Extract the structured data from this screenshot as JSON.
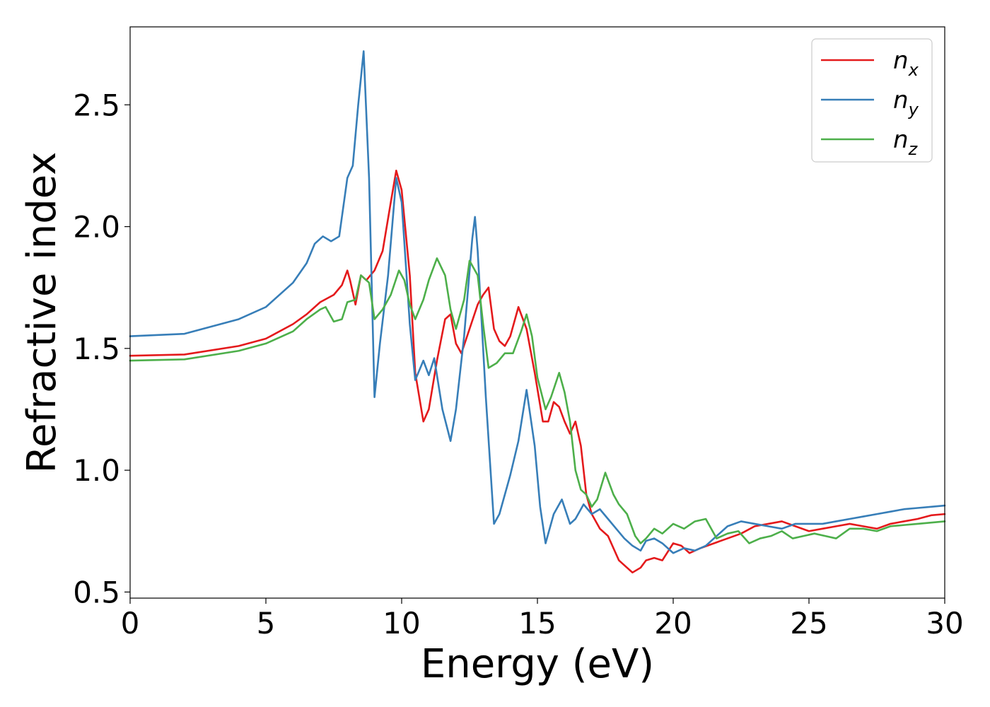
{
  "chart_data": {
    "type": "line",
    "title": "",
    "xlabel": "Energy (eV)",
    "ylabel": "Refractive index",
    "xlim": [
      0,
      30
    ],
    "ylim": [
      0.475,
      2.82
    ],
    "xticks": [
      0,
      5,
      10,
      15,
      20,
      25,
      30
    ],
    "xtick_labels": [
      "0",
      "5",
      "10",
      "15",
      "20",
      "25",
      "30"
    ],
    "yticks": [
      0.5,
      1.0,
      1.5,
      2.0,
      2.5
    ],
    "ytick_labels": [
      "0.5",
      "1.0",
      "1.5",
      "2.0",
      "2.5"
    ],
    "grid": false,
    "legend_position": "top-right",
    "series": [
      {
        "name": "n_x",
        "label_main": "n",
        "label_sub": "x",
        "color": "#e41a1c",
        "points": [
          [
            0,
            1.47
          ],
          [
            2,
            1.475
          ],
          [
            4,
            1.51
          ],
          [
            5,
            1.54
          ],
          [
            6,
            1.6
          ],
          [
            6.5,
            1.64
          ],
          [
            7,
            1.69
          ],
          [
            7.5,
            1.72
          ],
          [
            7.8,
            1.76
          ],
          [
            8.0,
            1.82
          ],
          [
            8.1,
            1.78
          ],
          [
            8.3,
            1.68
          ],
          [
            8.5,
            1.8
          ],
          [
            8.7,
            1.78
          ],
          [
            9.0,
            1.82
          ],
          [
            9.3,
            1.9
          ],
          [
            9.6,
            2.1
          ],
          [
            9.8,
            2.23
          ],
          [
            10.0,
            2.15
          ],
          [
            10.3,
            1.8
          ],
          [
            10.5,
            1.4
          ],
          [
            10.8,
            1.2
          ],
          [
            11.0,
            1.25
          ],
          [
            11.3,
            1.45
          ],
          [
            11.6,
            1.62
          ],
          [
            11.8,
            1.64
          ],
          [
            12.0,
            1.52
          ],
          [
            12.2,
            1.48
          ],
          [
            12.5,
            1.58
          ],
          [
            12.8,
            1.68
          ],
          [
            13.0,
            1.72
          ],
          [
            13.2,
            1.75
          ],
          [
            13.4,
            1.58
          ],
          [
            13.6,
            1.53
          ],
          [
            13.8,
            1.51
          ],
          [
            14.0,
            1.55
          ],
          [
            14.3,
            1.67
          ],
          [
            14.6,
            1.58
          ],
          [
            14.9,
            1.4
          ],
          [
            15.2,
            1.2
          ],
          [
            15.4,
            1.2
          ],
          [
            15.6,
            1.28
          ],
          [
            15.8,
            1.26
          ],
          [
            16.0,
            1.2
          ],
          [
            16.2,
            1.15
          ],
          [
            16.4,
            1.2
          ],
          [
            16.6,
            1.1
          ],
          [
            16.8,
            0.9
          ],
          [
            17.0,
            0.82
          ],
          [
            17.3,
            0.76
          ],
          [
            17.6,
            0.73
          ],
          [
            17.8,
            0.68
          ],
          [
            18.0,
            0.63
          ],
          [
            18.3,
            0.6
          ],
          [
            18.5,
            0.58
          ],
          [
            18.8,
            0.6
          ],
          [
            19.0,
            0.63
          ],
          [
            19.3,
            0.64
          ],
          [
            19.6,
            0.63
          ],
          [
            20.0,
            0.7
          ],
          [
            20.3,
            0.69
          ],
          [
            20.6,
            0.66
          ],
          [
            21.0,
            0.68
          ],
          [
            21.5,
            0.7
          ],
          [
            22,
            0.72
          ],
          [
            22.5,
            0.74
          ],
          [
            23,
            0.77
          ],
          [
            23.5,
            0.78
          ],
          [
            24,
            0.79
          ],
          [
            24.5,
            0.77
          ],
          [
            25,
            0.75
          ],
          [
            25.5,
            0.76
          ],
          [
            26,
            0.77
          ],
          [
            26.5,
            0.78
          ],
          [
            27,
            0.77
          ],
          [
            27.5,
            0.76
          ],
          [
            28,
            0.78
          ],
          [
            28.5,
            0.79
          ],
          [
            29,
            0.8
          ],
          [
            29.5,
            0.815
          ],
          [
            30,
            0.82
          ]
        ]
      },
      {
        "name": "n_y",
        "label_main": "n",
        "label_sub": "y",
        "color": "#377eb8",
        "points": [
          [
            0,
            1.55
          ],
          [
            2,
            1.56
          ],
          [
            4,
            1.62
          ],
          [
            5,
            1.67
          ],
          [
            6,
            1.77
          ],
          [
            6.5,
            1.85
          ],
          [
            6.8,
            1.93
          ],
          [
            7.1,
            1.96
          ],
          [
            7.4,
            1.94
          ],
          [
            7.7,
            1.96
          ],
          [
            8.0,
            2.2
          ],
          [
            8.2,
            2.25
          ],
          [
            8.4,
            2.5
          ],
          [
            8.6,
            2.72
          ],
          [
            8.8,
            2.2
          ],
          [
            9.0,
            1.3
          ],
          [
            9.2,
            1.52
          ],
          [
            9.5,
            1.8
          ],
          [
            9.8,
            2.2
          ],
          [
            10.0,
            2.1
          ],
          [
            10.3,
            1.6
          ],
          [
            10.5,
            1.37
          ],
          [
            10.8,
            1.45
          ],
          [
            11.0,
            1.39
          ],
          [
            11.2,
            1.46
          ],
          [
            11.5,
            1.25
          ],
          [
            11.8,
            1.12
          ],
          [
            12.0,
            1.25
          ],
          [
            12.3,
            1.55
          ],
          [
            12.6,
            1.95
          ],
          [
            12.7,
            2.04
          ],
          [
            12.8,
            1.9
          ],
          [
            13.1,
            1.3
          ],
          [
            13.4,
            0.78
          ],
          [
            13.6,
            0.82
          ],
          [
            14.0,
            0.98
          ],
          [
            14.3,
            1.12
          ],
          [
            14.6,
            1.33
          ],
          [
            14.9,
            1.1
          ],
          [
            15.1,
            0.85
          ],
          [
            15.3,
            0.7
          ],
          [
            15.6,
            0.82
          ],
          [
            15.9,
            0.88
          ],
          [
            16.2,
            0.78
          ],
          [
            16.4,
            0.8
          ],
          [
            16.7,
            0.86
          ],
          [
            17.0,
            0.82
          ],
          [
            17.3,
            0.84
          ],
          [
            17.6,
            0.8
          ],
          [
            17.9,
            0.76
          ],
          [
            18.2,
            0.72
          ],
          [
            18.5,
            0.69
          ],
          [
            18.8,
            0.67
          ],
          [
            19.0,
            0.71
          ],
          [
            19.3,
            0.72
          ],
          [
            19.6,
            0.7
          ],
          [
            20.0,
            0.66
          ],
          [
            20.4,
            0.68
          ],
          [
            20.8,
            0.67
          ],
          [
            21.2,
            0.69
          ],
          [
            21.6,
            0.73
          ],
          [
            22,
            0.77
          ],
          [
            22.5,
            0.79
          ],
          [
            23,
            0.78
          ],
          [
            23.5,
            0.77
          ],
          [
            24,
            0.76
          ],
          [
            24.5,
            0.78
          ],
          [
            25,
            0.78
          ],
          [
            25.5,
            0.78
          ],
          [
            26,
            0.79
          ],
          [
            26.5,
            0.8
          ],
          [
            27,
            0.81
          ],
          [
            27.5,
            0.82
          ],
          [
            28,
            0.83
          ],
          [
            28.5,
            0.84
          ],
          [
            29,
            0.845
          ],
          [
            29.5,
            0.85
          ],
          [
            30,
            0.855
          ]
        ]
      },
      {
        "name": "n_z",
        "label_main": "n",
        "label_sub": "z",
        "color": "#4daf4a",
        "points": [
          [
            0,
            1.45
          ],
          [
            2,
            1.455
          ],
          [
            4,
            1.49
          ],
          [
            5,
            1.52
          ],
          [
            6,
            1.57
          ],
          [
            6.5,
            1.62
          ],
          [
            7.0,
            1.66
          ],
          [
            7.2,
            1.67
          ],
          [
            7.5,
            1.61
          ],
          [
            7.8,
            1.62
          ],
          [
            8.0,
            1.69
          ],
          [
            8.3,
            1.7
          ],
          [
            8.5,
            1.8
          ],
          [
            8.8,
            1.77
          ],
          [
            9.0,
            1.62
          ],
          [
            9.3,
            1.66
          ],
          [
            9.6,
            1.72
          ],
          [
            9.9,
            1.82
          ],
          [
            10.1,
            1.78
          ],
          [
            10.3,
            1.68
          ],
          [
            10.5,
            1.62
          ],
          [
            10.8,
            1.7
          ],
          [
            11.0,
            1.78
          ],
          [
            11.3,
            1.87
          ],
          [
            11.6,
            1.8
          ],
          [
            11.8,
            1.66
          ],
          [
            12.0,
            1.58
          ],
          [
            12.3,
            1.7
          ],
          [
            12.5,
            1.86
          ],
          [
            12.8,
            1.8
          ],
          [
            13.0,
            1.6
          ],
          [
            13.2,
            1.42
          ],
          [
            13.5,
            1.44
          ],
          [
            13.8,
            1.48
          ],
          [
            14.1,
            1.48
          ],
          [
            14.4,
            1.57
          ],
          [
            14.6,
            1.64
          ],
          [
            14.8,
            1.55
          ],
          [
            15.0,
            1.38
          ],
          [
            15.3,
            1.25
          ],
          [
            15.5,
            1.3
          ],
          [
            15.8,
            1.4
          ],
          [
            16.0,
            1.32
          ],
          [
            16.2,
            1.2
          ],
          [
            16.4,
            1.0
          ],
          [
            16.6,
            0.92
          ],
          [
            16.8,
            0.9
          ],
          [
            17.0,
            0.85
          ],
          [
            17.2,
            0.88
          ],
          [
            17.5,
            0.99
          ],
          [
            17.8,
            0.9
          ],
          [
            18.0,
            0.86
          ],
          [
            18.3,
            0.82
          ],
          [
            18.6,
            0.73
          ],
          [
            18.8,
            0.7
          ],
          [
            19.0,
            0.72
          ],
          [
            19.3,
            0.76
          ],
          [
            19.6,
            0.74
          ],
          [
            20,
            0.78
          ],
          [
            20.4,
            0.76
          ],
          [
            20.8,
            0.79
          ],
          [
            21.2,
            0.8
          ],
          [
            21.6,
            0.72
          ],
          [
            22,
            0.74
          ],
          [
            22.4,
            0.75
          ],
          [
            22.8,
            0.7
          ],
          [
            23.2,
            0.72
          ],
          [
            23.6,
            0.73
          ],
          [
            24,
            0.75
          ],
          [
            24.4,
            0.72
          ],
          [
            24.8,
            0.73
          ],
          [
            25.2,
            0.74
          ],
          [
            25.6,
            0.73
          ],
          [
            26,
            0.72
          ],
          [
            26.5,
            0.76
          ],
          [
            27,
            0.76
          ],
          [
            27.5,
            0.75
          ],
          [
            28,
            0.77
          ],
          [
            28.5,
            0.775
          ],
          [
            29,
            0.78
          ],
          [
            29.5,
            0.785
          ],
          [
            30,
            0.79
          ]
        ]
      }
    ]
  }
}
